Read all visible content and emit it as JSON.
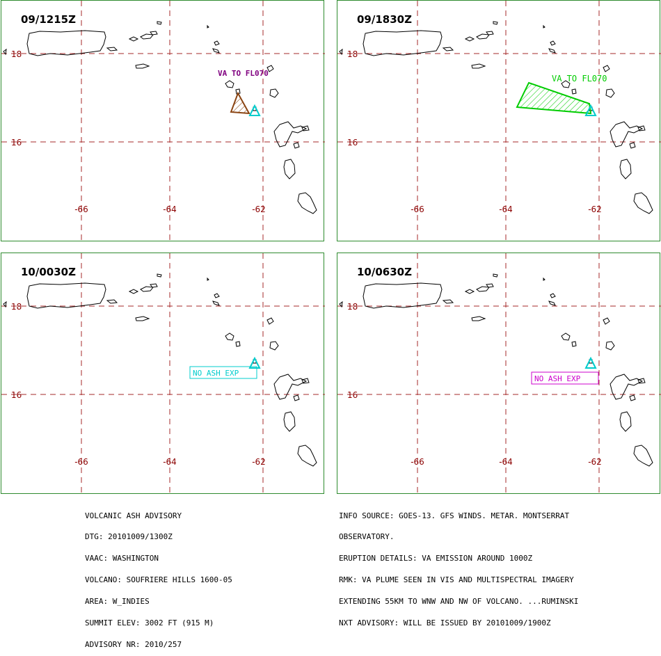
{
  "panels": [
    {
      "time": "09/1215Z",
      "ash_label": "VA TO FL070",
      "ash_color": "#8b4513",
      "label_color": "#800080",
      "kind": "polygon_small"
    },
    {
      "time": "09/1830Z",
      "ash_label": "VA TO FL070",
      "ash_color": "#00cc00",
      "label_color": "#00cc00",
      "kind": "polygon_large"
    },
    {
      "time": "10/0030Z",
      "ash_label": "NO ASH EXP",
      "ash_color": "#00cccc",
      "label_color": "#00cccc",
      "kind": "box"
    },
    {
      "time": "10/0630Z",
      "ash_label": "NO ASH EXP",
      "ash_color": "#cc00cc",
      "label_color": "#cc00cc",
      "kind": "box"
    }
  ],
  "axes": {
    "lat_labels": [
      "18",
      "16"
    ],
    "lon_labels": [
      "-66",
      "-64",
      "-62"
    ],
    "grid_color": "#a52a2a",
    "label_color": "#8b0000"
  },
  "advisory": {
    "left": [
      "VOLCANIC ASH ADVISORY",
      "DTG: 20101009/1300Z",
      "VAAC: WASHINGTON",
      "VOLCANO: SOUFRIERE HILLS 1600-05",
      "AREA: W_INDIES",
      "SUMMIT ELEV: 3002 FT (915 M)",
      "ADVISORY NR: 2010/257"
    ],
    "right": [
      "INFO SOURCE: GOES-13. GFS WINDS. METAR. MONTSERRAT",
      "OBSERVATORY.",
      "ERUPTION DETAILS: VA EMISSION AROUND 1000Z",
      "RMK: VA PLUME SEEN IN VIS AND MULTISPECTRAL IMAGERY",
      "EXTENDING 55KM TO WNW AND NW OF VOLCANO. ...RUMINSKI",
      "NXT ADVISORY: WILL BE ISSUED BY 20101009/1900Z"
    ]
  },
  "volcano_marker_color": "#00cccc",
  "panel_border_color": "#2e8b2e"
}
